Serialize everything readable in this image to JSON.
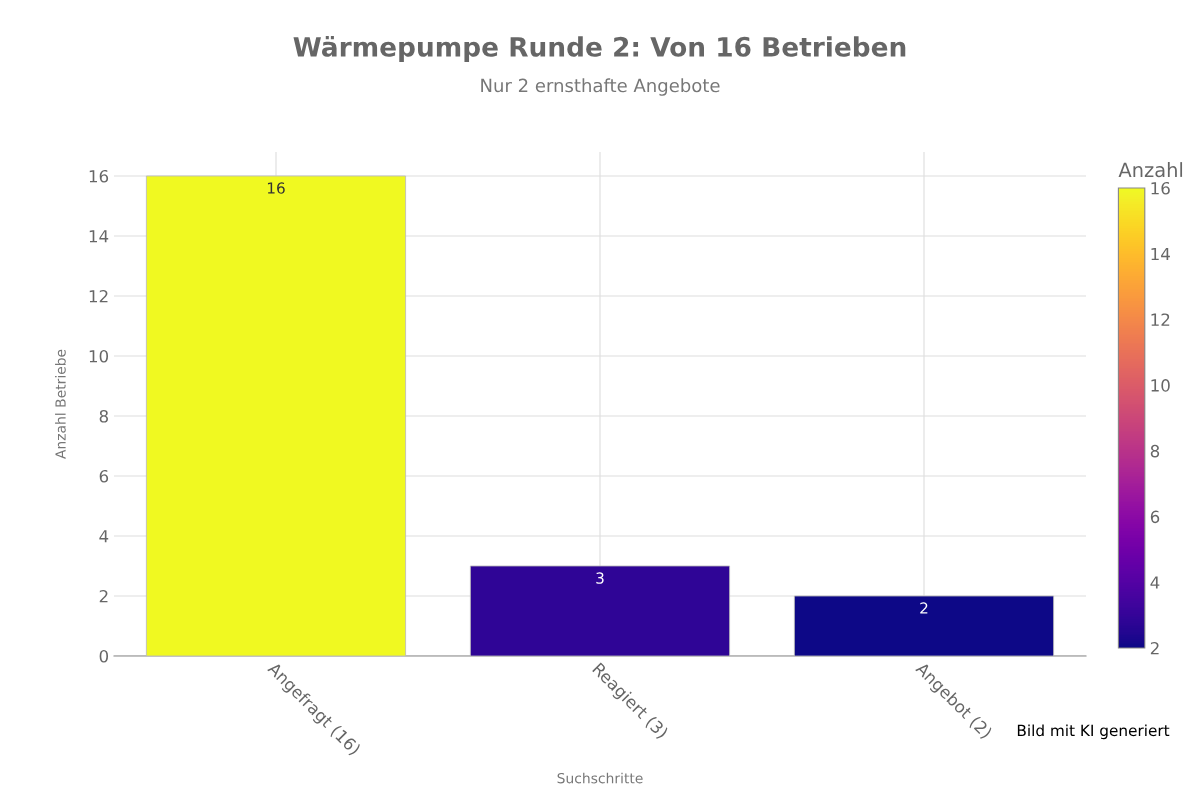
{
  "chart_data": {
    "type": "bar",
    "title": "Wärmepumpe Runde 2: Von 16 Betrieben",
    "subtitle": "Nur 2 ernsthafte Angebote",
    "xlabel": "Suchschritte",
    "ylabel": "Anzahl Betriebe",
    "clabel": "Anzahl",
    "categories": [
      "Angefragt (16)",
      "Reagiert (3)",
      "Angebot (2)"
    ],
    "values": [
      16,
      3,
      2
    ],
    "colors": [
      "#f0f921",
      "#2f0596",
      "#0d0887"
    ],
    "ylim": [
      0,
      16.8
    ],
    "yticks": [
      0,
      2,
      4,
      6,
      8,
      10,
      12,
      14,
      16
    ],
    "clim": [
      2,
      16
    ],
    "cticks": [
      2,
      4,
      6,
      8,
      10,
      12,
      14,
      16
    ],
    "grid": true,
    "data_labels": true,
    "annotations": [
      "Bild mit KI generiert"
    ]
  }
}
